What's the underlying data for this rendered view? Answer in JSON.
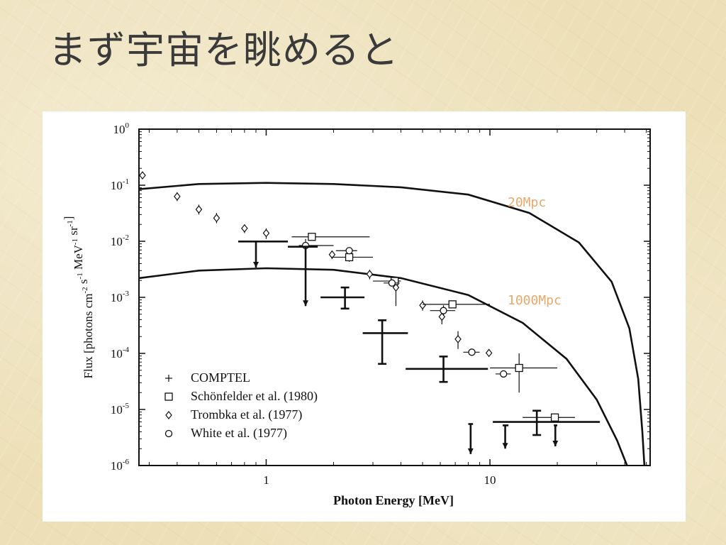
{
  "slide": {
    "title": "まず宇宙を眺めると"
  },
  "chart_data": {
    "type": "scatter",
    "title": "",
    "xlabel": "Photon Energy [MeV]",
    "ylabel": "Flux [photons cm-2 s-1 MeV-1 sr-1]",
    "xscale": "log",
    "yscale": "log",
    "xlim": [
      0.27,
      52
    ],
    "ylim": [
      1e-06,
      1
    ],
    "x_tick_labels": [
      "1",
      "10"
    ],
    "y_tick_labels": [
      {
        "base": "10",
        "exp": "0"
      },
      {
        "base": "10",
        "exp": "-1"
      },
      {
        "base": "10",
        "exp": "-2"
      },
      {
        "base": "10",
        "exp": "-3"
      },
      {
        "base": "10",
        "exp": "-4"
      },
      {
        "base": "10",
        "exp": "-5"
      },
      {
        "base": "10",
        "exp": "-6"
      }
    ],
    "legend_position": "bottom-left",
    "legend": [
      {
        "marker": "plus",
        "label": "COMPTEL"
      },
      {
        "marker": "square",
        "label": "Schönfelder et al. (1980)"
      },
      {
        "marker": "diamond",
        "label": "Trombka et al. (1977)"
      },
      {
        "marker": "circle",
        "label": "White et al. (1977)"
      }
    ],
    "annotations": [
      {
        "text": "20Mpc",
        "color": "#e6a96a",
        "x": 30,
        "y": 0.05
      },
      {
        "text": "1000Mpc",
        "color": "#e6a96a",
        "x": 30,
        "y": 0.00095
      }
    ],
    "curves": [
      {
        "name": "20Mpc",
        "x": [
          0.27,
          0.5,
          1,
          2,
          4,
          8,
          15,
          25,
          35,
          42,
          46,
          48,
          49
        ],
        "y": [
          0.085,
          0.105,
          0.11,
          0.105,
          0.092,
          0.068,
          0.032,
          0.0095,
          0.0019,
          0.00028,
          3.5e-05,
          4e-06,
          1e-06
        ]
      },
      {
        "name": "1000Mpc",
        "x": [
          0.27,
          0.5,
          1,
          2,
          4,
          8,
          14,
          22,
          30,
          37,
          41
        ],
        "y": [
          0.0022,
          0.003,
          0.0033,
          0.0031,
          0.0022,
          0.0011,
          0.00035,
          8e-05,
          1.5e-05,
          2.8e-06,
          1e-06
        ]
      }
    ],
    "series": [
      {
        "marker": "diamond",
        "points": [
          {
            "x": 0.28,
            "y": 0.15
          },
          {
            "x": 0.4,
            "y": 0.063,
            "yerr": [
              0.052,
              0.075
            ]
          },
          {
            "x": 0.5,
            "y": 0.037,
            "yerr": [
              0.03,
              0.045
            ]
          },
          {
            "x": 0.6,
            "y": 0.026,
            "yerr": [
              0.021,
              0.032
            ]
          },
          {
            "x": 0.8,
            "y": 0.017,
            "yerr": [
              0.014,
              0.02
            ]
          },
          {
            "x": 1.0,
            "y": 0.014,
            "yerr": [
              0.011,
              0.017
            ]
          },
          {
            "x": 1.97,
            "y": 0.0058,
            "yerr": [
              0.0048,
              0.0068
            ]
          },
          {
            "x": 2.9,
            "y": 0.0026,
            "yerr": [
              0.0021,
              0.0031
            ]
          },
          {
            "x": 3.8,
            "y": 0.0015,
            "yerr": [
              0.0007,
              0.0022
            ]
          },
          {
            "x": 5.0,
            "y": 0.00072,
            "yerr": [
              0.00058,
              0.00088
            ]
          },
          {
            "x": 6.1,
            "y": 0.00045,
            "yerr": [
              0.00033,
              0.00055
            ]
          },
          {
            "x": 7.2,
            "y": 0.00018,
            "yerr": [
              0.00012,
              0.00025
            ]
          },
          {
            "x": 9.9,
            "y": 0.000102
          }
        ]
      },
      {
        "marker": "square",
        "points": [
          {
            "x": 1.6,
            "y": 0.012,
            "xerr": [
              1.3,
              2.9
            ]
          },
          {
            "x": 2.35,
            "y": 0.0052,
            "xerr": [
              1.95,
              3.0
            ],
            "yerr": [
              0.0043,
              0.0063
            ]
          },
          {
            "x": 3.75,
            "y": 0.00195,
            "xerr": [
              3.0,
              4.0
            ]
          },
          {
            "x": 6.8,
            "y": 0.00075,
            "xerr": [
              5.0,
              10.0
            ]
          },
          {
            "x": 13.5,
            "y": 5.5e-05,
            "xerr": [
              10.0,
              20.0
            ],
            "yerr": [
              2e-05,
              0.0001
            ]
          },
          {
            "x": 19.5,
            "y": 7.2e-06,
            "xerr": [
              14.0,
              24.0
            ]
          }
        ]
      },
      {
        "marker": "circle",
        "points": [
          {
            "x": 1.5,
            "y": 0.0084,
            "xerr": [
              1.4,
              2.0
            ],
            "yerr": [
              0.0007,
              0.011
            ]
          },
          {
            "x": 2.35,
            "y": 0.0068,
            "xerr": [
              2.05,
              2.55
            ]
          },
          {
            "x": 3.65,
            "y": 0.0018,
            "xerr": [
              3.35,
              3.95
            ]
          },
          {
            "x": 6.2,
            "y": 0.00058,
            "xerr": [
              5.4,
              7.0
            ],
            "yerr": [
              0.00047,
              0.00072
            ]
          },
          {
            "x": 8.3,
            "y": 0.000105,
            "xerr": [
              7.6,
              9.0
            ]
          },
          {
            "x": 11.5,
            "y": 4.3e-05,
            "xerr": [
              10.6,
              12.4
            ]
          }
        ]
      },
      {
        "marker": "cross-errorbar",
        "points": [
          {
            "x": 0.9,
            "y": 0.0099,
            "xerr": [
              0.75,
              1.25
            ],
            "yerr": [
              0.0034,
              0.0099
            ],
            "upper_limit": true
          },
          {
            "x": 1.5,
            "y": 0.008,
            "xerr": [
              1.25,
              1.7
            ],
            "yerr": [
              0.0007,
              0.008
            ],
            "upper_limit": true
          },
          {
            "x": 2.25,
            "y": 0.001,
            "xerr": [
              1.75,
              2.75
            ],
            "yerr": [
              0.00063,
              0.0015
            ]
          },
          {
            "x": 3.3,
            "y": 0.00023,
            "xerr": [
              2.7,
              4.3
            ],
            "yerr": [
              6.5e-05,
              0.00039
            ]
          },
          {
            "x": 6.2,
            "y": 5.3e-05,
            "xerr": [
              4.2,
              9.8
            ],
            "yerr": [
              3.1e-05,
              8.8e-05
            ]
          },
          {
            "x": 8.2,
            "y": 5.5e-06,
            "xerr": [
              8.0,
              8.4
            ],
            "yerr": [
              1.6e-06,
              5.5e-06
            ],
            "upper_limit": true
          },
          {
            "x": 11.7,
            "y": 5.2e-06,
            "xerr": [
              11.4,
              12.1
            ],
            "yerr": [
              2e-06,
              5.2e-06
            ],
            "upper_limit": true
          },
          {
            "x": 16.2,
            "y": 6e-06,
            "xerr": [
              10.3,
              31.0
            ],
            "yerr": [
              3.5e-06,
              9.5e-06
            ]
          },
          {
            "x": 19.6,
            "y": 5.2e-06,
            "xerr": [
              19.3,
              20.0
            ],
            "yerr": [
              2.2e-06,
              5.2e-06
            ],
            "upper_limit": true
          }
        ]
      }
    ]
  }
}
